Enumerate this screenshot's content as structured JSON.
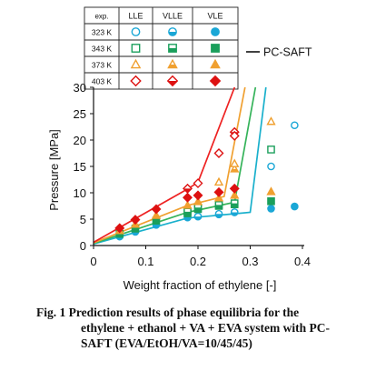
{
  "colors": {
    "323": "#1aa7d6",
    "343": "#1a9f5b",
    "373": "#f0a030",
    "403": "#dd1111",
    "line323": "#1ab0cc",
    "line343": "#35b35a",
    "line373": "#f0a030",
    "line403": "#ee2222"
  },
  "chart_data": {
    "type": "scatter",
    "xlabel": "Weight fraction of ethylene [-]",
    "ylabel": "Pressure [MPa]",
    "xlim": [
      0,
      0.4
    ],
    "ylim": [
      0,
      30
    ],
    "xticks": [
      "0",
      "0.1",
      "0.2",
      "0.3",
      "0.4"
    ],
    "yticks": [
      "0",
      "5",
      "10",
      "15",
      "20",
      "25",
      "30"
    ],
    "legend": {
      "header": [
        "exp.",
        "LLE",
        "VLLE",
        "VLE"
      ],
      "rows": [
        {
          "temp": "323 K",
          "key": "323"
        },
        {
          "temp": "343 K",
          "key": "343"
        },
        {
          "temp": "373 K",
          "key": "373"
        },
        {
          "temp": "403 K",
          "key": "403"
        }
      ],
      "model_label": "PC-SAFT"
    },
    "series": [
      {
        "name": "323 K",
        "key": "323",
        "marker": "circle",
        "vle": [
          [
            0.05,
            1.7
          ],
          [
            0.08,
            2.6
          ],
          [
            0.12,
            3.9
          ],
          [
            0.18,
            5.3
          ],
          [
            0.2,
            5.5
          ],
          [
            0.24,
            5.9
          ],
          [
            0.27,
            6.3
          ],
          [
            0.34,
            7.0
          ],
          [
            0.385,
            7.4
          ]
        ],
        "vlle": [
          [
            0.2,
            5.5
          ],
          [
            0.24,
            6.0
          ],
          [
            0.27,
            6.3
          ]
        ],
        "lle": [
          [
            0.34,
            15.0
          ],
          [
            0.385,
            22.8
          ]
        ],
        "model": [
          [
            0,
            0.3
          ],
          [
            0.18,
            5.2
          ],
          [
            0.3,
            6.3
          ],
          [
            0.33,
            30
          ]
        ]
      },
      {
        "name": "343 K",
        "key": "343",
        "marker": "square",
        "vle": [
          [
            0.05,
            2.2
          ],
          [
            0.08,
            3.2
          ],
          [
            0.12,
            4.7
          ],
          [
            0.18,
            6.1
          ],
          [
            0.2,
            6.9
          ],
          [
            0.24,
            7.5
          ],
          [
            0.27,
            7.8
          ],
          [
            0.34,
            8.4
          ]
        ],
        "vlle": [
          [
            0.18,
            6.4
          ],
          [
            0.2,
            7.2
          ],
          [
            0.24,
            7.7
          ],
          [
            0.27,
            8.0
          ]
        ],
        "lle": [
          [
            0.34,
            18.2
          ]
        ],
        "model": [
          [
            0,
            0.4
          ],
          [
            0.18,
            6.3
          ],
          [
            0.27,
            8.2
          ],
          [
            0.31,
            30
          ]
        ]
      },
      {
        "name": "373 K",
        "key": "373",
        "marker": "triangle",
        "vle": [
          [
            0.05,
            2.8
          ],
          [
            0.08,
            4.0
          ],
          [
            0.12,
            5.7
          ],
          [
            0.18,
            7.6
          ],
          [
            0.2,
            8.3
          ],
          [
            0.24,
            9.0
          ],
          [
            0.27,
            9.5
          ],
          [
            0.34,
            10.2
          ]
        ],
        "vlle": [
          [
            0.27,
            14.5
          ]
        ],
        "lle": [
          [
            0.24,
            12.0
          ],
          [
            0.27,
            15.5
          ],
          [
            0.34,
            23.5
          ]
        ],
        "model": [
          [
            0,
            0.5
          ],
          [
            0.18,
            7.6
          ],
          [
            0.25,
            9.3
          ],
          [
            0.29,
            30
          ]
        ]
      },
      {
        "name": "403 K",
        "key": "403",
        "marker": "diamond",
        "vle": [
          [
            0.05,
            3.3
          ],
          [
            0.08,
            4.9
          ],
          [
            0.12,
            6.9
          ],
          [
            0.18,
            9.1
          ],
          [
            0.2,
            9.5
          ],
          [
            0.24,
            10.1
          ],
          [
            0.27,
            10.8
          ]
        ],
        "vlle": [
          [
            0.18,
            10.8
          ],
          [
            0.27,
            21.5
          ]
        ],
        "lle": [
          [
            0.2,
            11.8
          ],
          [
            0.24,
            17.5
          ],
          [
            0.27,
            20.8
          ]
        ],
        "model": [
          [
            0,
            0.6
          ],
          [
            0.18,
            10.7
          ],
          [
            0.2,
            12.0
          ],
          [
            0.27,
            30
          ]
        ]
      }
    ]
  },
  "caption": {
    "line1": "Fig.  1  Prediction  results  of  phase  equilibria  for  the",
    "line2": "ethylene + ethanol + VA + EVA system with PC-",
    "line3": "SAFT (EVA/EtOH/VA=10/45/45)"
  }
}
